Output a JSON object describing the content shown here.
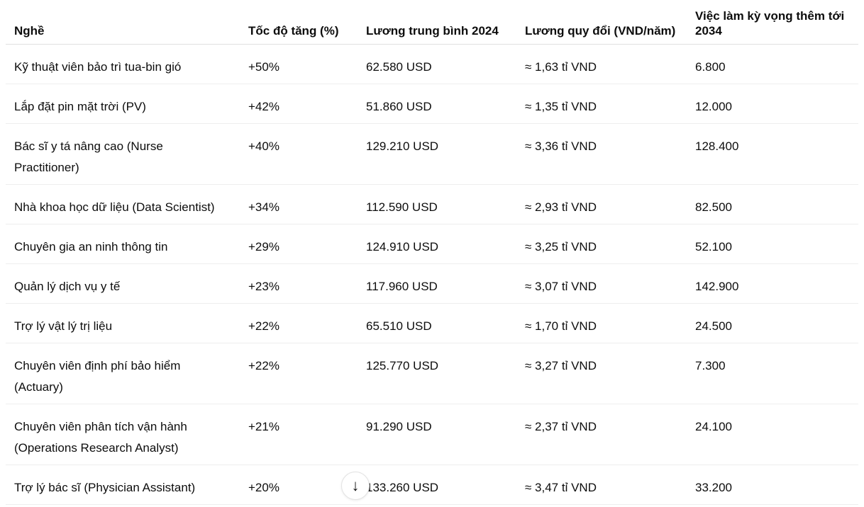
{
  "table": {
    "headers": [
      "Nghề",
      "Tốc độ tăng (%)",
      "Lương trung bình 2024",
      "Lương quy đổi (VND/năm)",
      "Việc làm kỳ vọng thêm tới 2034"
    ],
    "rows": [
      [
        "Kỹ thuật viên bảo trì tua-bin gió",
        "+50%",
        "62.580 USD",
        "≈ 1,63 tỉ VND",
        "6.800"
      ],
      [
        "Lắp đặt pin mặt trời (PV)",
        "+42%",
        "51.860 USD",
        "≈ 1,35 tỉ VND",
        "12.000"
      ],
      [
        "Bác sĩ y tá nâng cao (Nurse Practitioner)",
        "+40%",
        "129.210 USD",
        "≈ 3,36 tỉ VND",
        "128.400"
      ],
      [
        "Nhà khoa học dữ liệu (Data Scientist)",
        "+34%",
        "112.590 USD",
        "≈ 2,93 tỉ VND",
        "82.500"
      ],
      [
        "Chuyên gia an ninh thông tin",
        "+29%",
        "124.910 USD",
        "≈ 3,25 tỉ VND",
        "52.100"
      ],
      [
        "Quản lý dịch vụ y tế",
        "+23%",
        "117.960 USD",
        "≈ 3,07 tỉ VND",
        "142.900"
      ],
      [
        "Trợ lý vật lý trị liệu",
        "+22%",
        "65.510 USD",
        "≈ 1,70 tỉ VND",
        "24.500"
      ],
      [
        "Chuyên viên định phí bảo hiểm (Actuary)",
        "+22%",
        "125.770 USD",
        "≈ 3,27 tỉ VND",
        "7.300"
      ],
      [
        "Chuyên viên phân tích vận hành (Operations Research Analyst)",
        "+21%",
        "91.290 USD",
        "≈ 2,37 tỉ VND",
        "24.100"
      ],
      [
        "Trợ lý bác sĩ (Physician Assistant)",
        "+20%",
        "133.260 USD",
        "≈ 3,47 tỉ VND",
        "33.200"
      ]
    ]
  },
  "scroll_button": {
    "icon": "arrow-down-icon",
    "glyph": "↓"
  }
}
